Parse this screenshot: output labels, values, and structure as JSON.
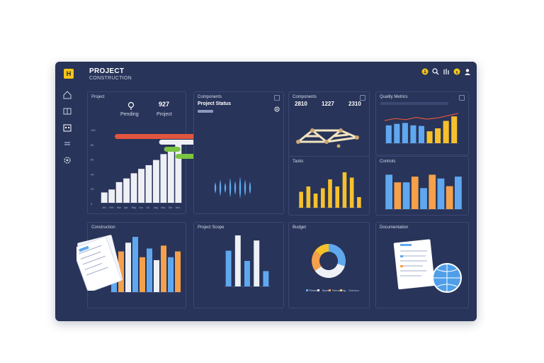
{
  "app": {
    "title": "PROJECT",
    "subtitle": "CONSTRUCTION",
    "logo": "H"
  },
  "colors": {
    "panel": "#283459",
    "card_border": "#3c4872",
    "blue": "#5fa8f0",
    "orange": "#f5a04a",
    "yellow": "#f7c12b",
    "red": "#e2553e",
    "green": "#7cc442",
    "bar_gray": "#eef0f6"
  },
  "top_icons": [
    "bell-icon",
    "search-icon",
    "settings-icon",
    "info-icon",
    "user-icon"
  ],
  "sidebar_icons": [
    "home-icon",
    "folder-icon",
    "calendar-icon",
    "list-icon",
    "gear-icon"
  ],
  "cards": {
    "c1": {
      "title": "Project",
      "stat1": "9",
      "stat1_label": "Pending",
      "stat2": "927",
      "stat2_label": "Project",
      "y_ticks": [
        "100",
        "80",
        "60",
        "40",
        "20",
        "0"
      ],
      "x_ticks": [
        "Jan",
        "Feb",
        "Mar",
        "Apr",
        "May",
        "Jun",
        "Jul",
        "Aug",
        "Sep",
        "Oct",
        "Nov"
      ]
    },
    "c2": {
      "title": "Components",
      "subtitle": "Project Status"
    },
    "c3": {
      "title": "Components",
      "stats": [
        "2810",
        "1227",
        "2310"
      ]
    },
    "c4": {
      "title": "Quality Metrics"
    },
    "c5": {
      "title": "Tasks"
    },
    "c6": {
      "title": "Controls"
    },
    "c7": {
      "title": "Construction"
    },
    "c8": {
      "title": "Project Scope"
    },
    "c9": {
      "title": "Budget",
      "legend": [
        "Planned",
        "Spent",
        "Remaining",
        "Overrun"
      ]
    },
    "c10": {
      "title": "Documentation"
    }
  },
  "chart_data": [
    {
      "type": "bar",
      "id": "progress-bars",
      "values": [
        14,
        18,
        28,
        33,
        40,
        46,
        51,
        58,
        66,
        72,
        82
      ],
      "ylim": [
        0,
        100
      ]
    },
    {
      "type": "gantt",
      "id": "timeline",
      "tasks": [
        {
          "color": "red",
          "start": 0,
          "end": 0.9
        },
        {
          "color": "gray",
          "start": 0.27,
          "end": 0.9
        },
        {
          "color": "green",
          "start": 0.3,
          "end": 0.4
        },
        {
          "color": "green",
          "start": 0.37,
          "end": 0.52
        },
        {
          "color": "yellow",
          "start": 0.49,
          "end": 0.66
        }
      ]
    },
    {
      "type": "bar",
      "id": "quality-bars",
      "values": [
        60,
        65,
        68,
        60,
        58,
        40,
        50,
        75,
        90
      ],
      "colors": [
        "blue",
        "blue",
        "blue",
        "blue",
        "blue",
        "yellow",
        "yellow",
        "yellow",
        "yellow"
      ]
    },
    {
      "type": "line",
      "id": "quality-trend",
      "values": [
        55,
        62,
        58,
        66,
        60,
        64,
        72,
        80
      ]
    },
    {
      "type": "bar",
      "id": "tasks-bars",
      "values": [
        45,
        60,
        40,
        55,
        80,
        60,
        100,
        85,
        30
      ]
    },
    {
      "type": "bar",
      "id": "controls-bars",
      "values": [
        90,
        70,
        70,
        85,
        55,
        90,
        80,
        60,
        85
      ],
      "colors": [
        "blue",
        "orange",
        "blue",
        "orange",
        "blue",
        "orange",
        "blue",
        "orange",
        "blue"
      ]
    },
    {
      "type": "bar",
      "id": "construction-bars",
      "values": [
        55,
        70,
        85,
        95,
        60,
        75,
        55,
        80,
        60,
        70
      ],
      "colors": [
        "blue",
        "orange",
        "gray",
        "blue",
        "orange",
        "blue",
        "gray",
        "orange",
        "blue",
        "orange"
      ]
    },
    {
      "type": "bar",
      "id": "scope-bars",
      "values": [
        70,
        100,
        50,
        90,
        30
      ],
      "colors": [
        "blue",
        "gray",
        "blue",
        "gray",
        "blue"
      ]
    },
    {
      "type": "pie",
      "id": "budget-donut",
      "values": [
        30,
        35,
        20,
        15
      ],
      "colors": [
        "blue",
        "gray",
        "orange",
        "yellow"
      ]
    }
  ]
}
